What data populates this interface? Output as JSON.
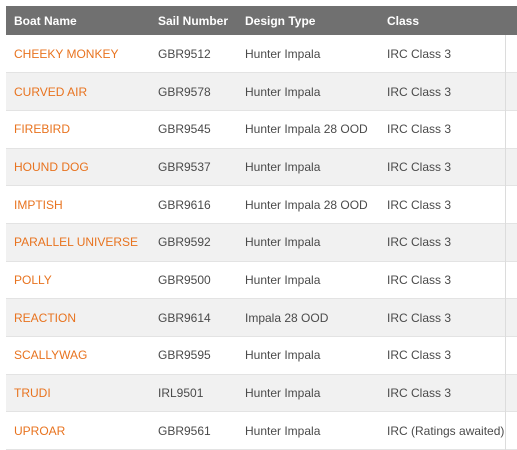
{
  "table": {
    "headers": {
      "boat_name": "Boat Name",
      "sail_number": "Sail Number",
      "design_type": "Design Type",
      "class": "Class"
    },
    "rows": [
      {
        "boat_name": "CHEEKY MONKEY",
        "sail_number": "GBR9512",
        "design_type": "Hunter Impala",
        "class": "IRC Class 3"
      },
      {
        "boat_name": "CURVED AIR",
        "sail_number": "GBR9578",
        "design_type": "Hunter Impala",
        "class": "IRC Class 3"
      },
      {
        "boat_name": "FIREBIRD",
        "sail_number": "GBR9545",
        "design_type": "Hunter Impala 28 OOD",
        "class": "IRC Class 3"
      },
      {
        "boat_name": "HOUND DOG",
        "sail_number": "GBR9537",
        "design_type": "Hunter Impala",
        "class": "IRC Class 3"
      },
      {
        "boat_name": "IMPTISH",
        "sail_number": "GBR9616",
        "design_type": "Hunter Impala 28 OOD",
        "class": "IRC Class 3"
      },
      {
        "boat_name": "PARALLEL UNIVERSE",
        "sail_number": "GBR9592",
        "design_type": "Hunter Impala",
        "class": "IRC Class 3"
      },
      {
        "boat_name": "POLLY",
        "sail_number": "GBR9500",
        "design_type": "Hunter Impala",
        "class": "IRC Class 3"
      },
      {
        "boat_name": "REACTION",
        "sail_number": "GBR9614",
        "design_type": "Impala 28 OOD",
        "class": "IRC Class 3"
      },
      {
        "boat_name": "SCALLYWAG",
        "sail_number": "GBR9595",
        "design_type": "Hunter Impala",
        "class": "IRC Class 3"
      },
      {
        "boat_name": "TRUDI",
        "sail_number": "IRL9501",
        "design_type": "Hunter Impala",
        "class": "IRC Class 3"
      },
      {
        "boat_name": "UPROAR",
        "sail_number": "GBR9561",
        "design_type": "Hunter Impala",
        "class": "IRC (Ratings awaited)"
      }
    ],
    "colors": {
      "header_bg": "#707070",
      "link": "#e8731f",
      "row_alt": "#f1f1f1"
    }
  }
}
